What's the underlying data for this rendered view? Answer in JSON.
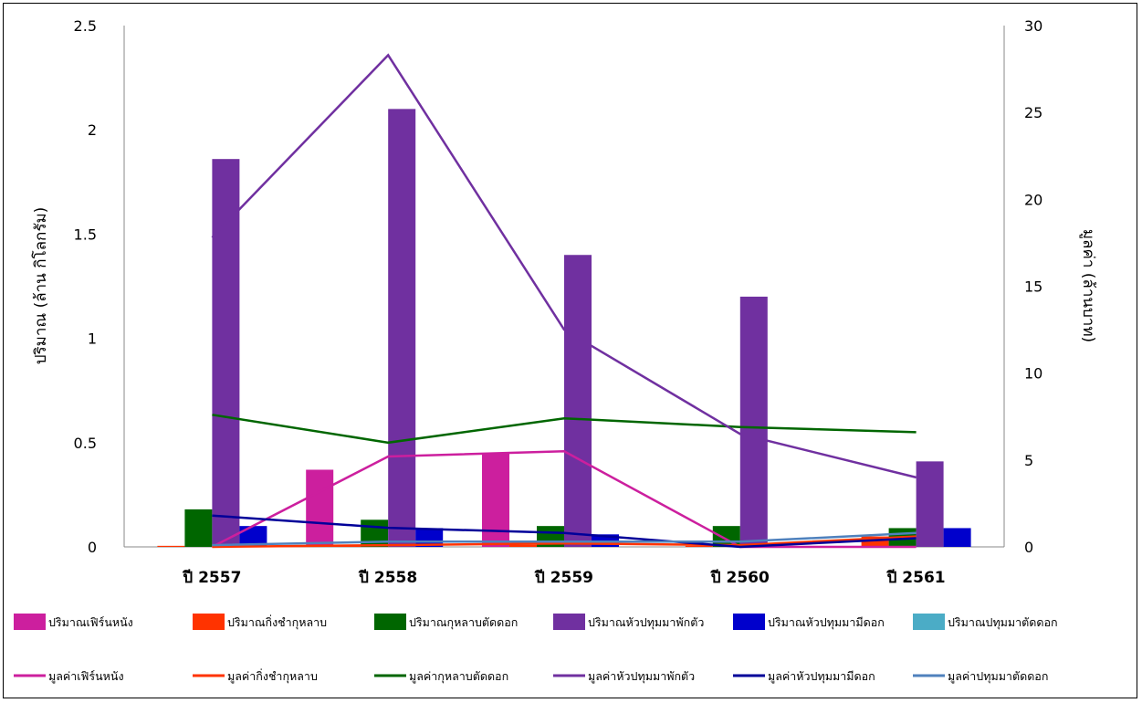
{
  "chart_data": {
    "type": "bar",
    "title": "",
    "categories": [
      "ปี 2557",
      "ปี 2558",
      "ปี 2559",
      "ปี 2560",
      "ปี 2561"
    ],
    "y_left": {
      "label": "ปริมาณ (ล้าน กิโลกรัม)",
      "ylim": [
        0,
        2.5
      ],
      "ticks": [
        0,
        0.5,
        1,
        1.5,
        2,
        2.5
      ],
      "tick_labels": [
        "0",
        "0.5",
        "1",
        "1.5",
        "2",
        "2.5"
      ]
    },
    "y_right": {
      "label": "มูลค่า (ล้านบาท)",
      "ylim": [
        0,
        30
      ],
      "ticks": [
        0,
        5,
        10,
        15,
        20,
        25,
        30
      ],
      "tick_labels": [
        "0",
        "5",
        "10",
        "15",
        "20",
        "25",
        "30"
      ]
    },
    "grid": false,
    "legend_position": "bottom",
    "bar_series": [
      {
        "name": "ปริมาณเฟิร์นหนัง",
        "color": "#cc1f9e",
        "values": [
          0.0,
          0.37,
          0.45,
          0.0,
          0.0
        ]
      },
      {
        "name": "ปริมาณกิ่งชำกุหลาบ",
        "color": "#ff3300",
        "values": [
          0.005,
          0.01,
          0.01,
          0.005,
          0.05
        ]
      },
      {
        "name": "ปริมาณกุหลาบตัดดอก",
        "color": "#006600",
        "values": [
          0.18,
          0.13,
          0.1,
          0.1,
          0.09
        ]
      },
      {
        "name": "ปริมาณหัวปทุมมาพักตัว",
        "color": "#7030a0",
        "values": [
          1.86,
          2.1,
          1.4,
          1.2,
          0.41
        ]
      },
      {
        "name": "ปริมาณหัวปทุมมามีดอก",
        "color": "#0000cc",
        "values": [
          0.1,
          0.09,
          0.06,
          0.0,
          0.09
        ]
      },
      {
        "name": "ปริมาณปทุมมาตัดดอก",
        "color": "#4bacc6",
        "values": [
          0.0,
          0.0,
          0.0,
          0.0,
          0.0
        ]
      }
    ],
    "line_series": [
      {
        "name": "มูลค่าเฟิร์นหนัง",
        "color": "#cc1f9e",
        "values": [
          0.0,
          5.2,
          5.5,
          0.0,
          0.0
        ]
      },
      {
        "name": "มูลค่ากิ่งชำกุหลาบ",
        "color": "#ff3300",
        "values": [
          0.0,
          0.1,
          0.2,
          0.1,
          0.6
        ]
      },
      {
        "name": "มูลค่ากุหลาบตัดดอก",
        "color": "#006600",
        "values": [
          7.6,
          6.0,
          7.4,
          6.9,
          6.6
        ]
      },
      {
        "name": "มูลค่าหัวปทุมมาพักตัว",
        "color": "#7030a0",
        "values": [
          17.8,
          28.3,
          12.5,
          6.5,
          4.0
        ]
      },
      {
        "name": "มูลค่าหัวปทุมมามีดอก",
        "color": "#000099",
        "values": [
          1.8,
          1.1,
          0.8,
          0.0,
          0.5
        ]
      },
      {
        "name": "มูลค่าปทุมมาตัดดอก",
        "color": "#4f81bd",
        "values": [
          0.1,
          0.3,
          0.3,
          0.3,
          0.8
        ]
      }
    ]
  }
}
